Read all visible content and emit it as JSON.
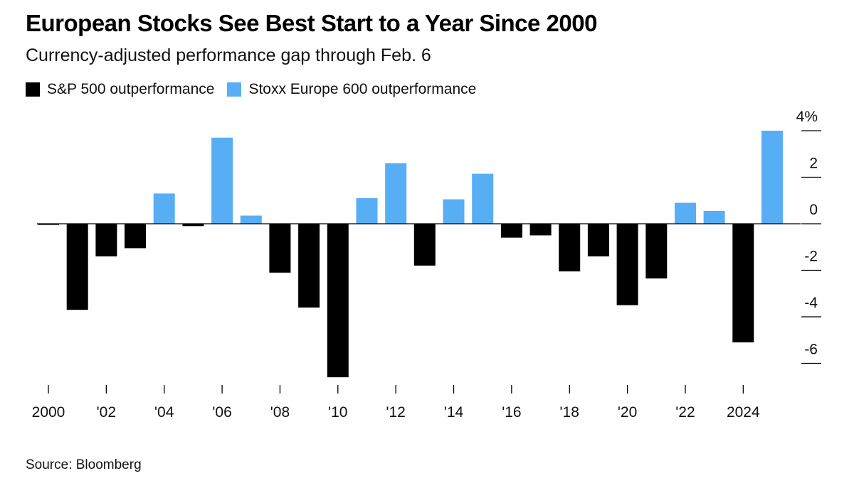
{
  "title": "European Stocks See Best Start to a Year Since 2000",
  "subtitle": "Currency-adjusted performance gap through Feb. 6",
  "legend": [
    {
      "label": "S&P 500 outperformance",
      "color": "#000000"
    },
    {
      "label": "Stoxx Europe 600 outperformance",
      "color": "#57AEF5"
    }
  ],
  "source": "Source: Bloomberg",
  "chart_data": {
    "type": "bar",
    "title": "European Stocks See Best Start to a Year Since 2000",
    "subtitle": "Currency-adjusted performance gap through Feb. 6",
    "xlabel": "",
    "ylabel": "",
    "ylim": [
      -7,
      4.5
    ],
    "yticks": [
      4,
      2,
      0,
      -2,
      -4,
      -6
    ],
    "ytick_labels": [
      "4%",
      "2",
      "0",
      "-2",
      "-4",
      "-6"
    ],
    "x_tick_years": [
      2000,
      2002,
      2004,
      2006,
      2008,
      2010,
      2012,
      2014,
      2016,
      2018,
      2020,
      2022,
      2024
    ],
    "x_tick_labels": [
      "2000",
      "'02",
      "'04",
      "'06",
      "'08",
      "'10",
      "'12",
      "'14",
      "'16",
      "'18",
      "'20",
      "'22",
      "2024"
    ],
    "years": [
      2000,
      2001,
      2002,
      2003,
      2004,
      2005,
      2006,
      2007,
      2008,
      2009,
      2010,
      2011,
      2012,
      2013,
      2014,
      2015,
      2016,
      2017,
      2018,
      2019,
      2020,
      2021,
      2022,
      2023,
      2024,
      2025
    ],
    "values": [
      -0.05,
      -3.7,
      -1.4,
      -1.05,
      1.3,
      -0.1,
      3.7,
      0.35,
      -2.1,
      -3.6,
      -6.6,
      1.1,
      2.6,
      -1.8,
      1.05,
      2.15,
      -0.6,
      -0.5,
      -2.05,
      -1.4,
      -3.5,
      -2.35,
      0.9,
      0.55,
      -5.1,
      4.0
    ],
    "series": [
      {
        "name": "S&P 500 outperformance",
        "color": "#000000",
        "sign": "negative"
      },
      {
        "name": "Stoxx Europe 600 outperformance",
        "color": "#57AEF5",
        "sign": "positive"
      }
    ],
    "grid": false,
    "legend_position": "top-left"
  }
}
